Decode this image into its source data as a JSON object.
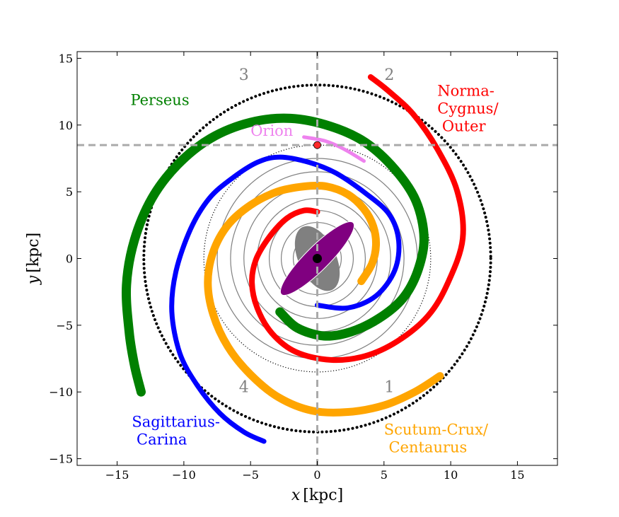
{
  "chart_data": {
    "type": "line",
    "xlim": [
      -18,
      18
    ],
    "ylim": [
      -15.5,
      15.5
    ],
    "xticks": [
      -15,
      -10,
      -5,
      0,
      5,
      10,
      15
    ],
    "yticks": [
      -15,
      -10,
      -5,
      0,
      5,
      10,
      15
    ],
    "xtick_labels": [
      "−15",
      "−10",
      "−5",
      "0",
      "5",
      "10",
      "15"
    ],
    "ytick_labels": [
      "−15",
      "−10",
      "−5",
      "0",
      "5",
      "10",
      "15"
    ],
    "xlabel_var": "x",
    "xlabel_unit": "[kpc]",
    "ylabel_var": "y",
    "ylabel_unit": "[kpc]",
    "grid": false,
    "sun": {
      "x": 0,
      "y": 8.5,
      "color": "#ff2a2a"
    },
    "galactic_center": {
      "x": 0,
      "y": 0
    },
    "reference_lines": {
      "x": 0,
      "y": 8.5,
      "color": "#aaaaaa"
    },
    "bulge": {
      "center": [
        0,
        0
      ],
      "semi_major": 2.6,
      "semi_minor": 1.4,
      "angle_deg": 115,
      "color": "#808080"
    },
    "bar": {
      "center": [
        0,
        0
      ],
      "semi_major": 3.8,
      "semi_minor": 0.9,
      "angle_deg": 45,
      "color": "#800080"
    },
    "circles": {
      "radii": [
        1,
        1.8,
        2.7,
        3.6,
        4.5,
        5.5,
        6.5,
        7.5
      ],
      "color": "#808080",
      "solar_circle_radius": 8.5,
      "outer_circle_radius": 13
    },
    "quadrants": [
      {
        "label": "1",
        "x": 5.4,
        "y": -9.7
      },
      {
        "label": "2",
        "x": 5.4,
        "y": 13.7
      },
      {
        "label": "3",
        "x": -5.5,
        "y": 13.7
      },
      {
        "label": "4",
        "x": -5.5,
        "y": -9.7
      }
    ],
    "series": [
      {
        "name": "Norma-Cygnus/ Outer",
        "label_lines": [
          "Norma-",
          "Cygnus/",
          " Outer"
        ],
        "label_pos": [
          9.0,
          12.2
        ],
        "color": "#ff0000",
        "width": 8,
        "points": [
          [
            0,
            3.5
          ],
          [
            -1,
            3.6
          ],
          [
            -2.3,
            3
          ],
          [
            -3.6,
            1.6
          ],
          [
            -4.6,
            -0.1
          ],
          [
            -4.9,
            -1.8
          ],
          [
            -4.5,
            -3.7
          ],
          [
            -3.4,
            -5.6
          ],
          [
            -1.6,
            -7
          ],
          [
            1,
            -7.6
          ],
          [
            3.6,
            -7.3
          ],
          [
            6,
            -6.2
          ],
          [
            8.3,
            -4.3
          ],
          [
            9.8,
            -1.8
          ],
          [
            10.9,
            1.5
          ],
          [
            10.5,
            5
          ],
          [
            9,
            8.2
          ],
          [
            7.2,
            10.8
          ],
          [
            5.4,
            12.5
          ],
          [
            4,
            13.6
          ]
        ]
      },
      {
        "name": "Scutum-Crux/ Centaurus",
        "label_lines": [
          "Scutum-Crux/",
          " Centaurus"
        ],
        "label_pos": [
          5.0,
          -13.2
        ],
        "color": "#ffa500",
        "width": 11,
        "points": [
          [
            3.3,
            -1.7
          ],
          [
            4.1,
            -0.4
          ],
          [
            4.4,
            1
          ],
          [
            4.2,
            2.4
          ],
          [
            3.5,
            3.7
          ],
          [
            2.3,
            4.8
          ],
          [
            0.7,
            5.4
          ],
          [
            -1,
            5.4
          ],
          [
            -3,
            5
          ],
          [
            -5,
            4
          ],
          [
            -6.7,
            2.5
          ],
          [
            -7.8,
            0.5
          ],
          [
            -8.2,
            -1.8
          ],
          [
            -7.8,
            -4.2
          ],
          [
            -6.7,
            -6.6
          ],
          [
            -5,
            -8.7
          ],
          [
            -2.9,
            -10.4
          ],
          [
            -0.4,
            -11.4
          ],
          [
            2.3,
            -11.5
          ],
          [
            5,
            -11
          ],
          [
            7.3,
            -10
          ],
          [
            9.2,
            -8.8
          ]
        ]
      },
      {
        "name": "Sagittarius-Carina",
        "label_lines": [
          "Sagittarius-",
          " Carina"
        ],
        "label_pos": [
          -13.9,
          -12.6
        ],
        "color": "#0000ff",
        "width": 7,
        "points": [
          [
            0,
            -3.5
          ],
          [
            2.3,
            -3.7
          ],
          [
            4.4,
            -2.8
          ],
          [
            5.8,
            -0.9
          ],
          [
            6.1,
            1.3
          ],
          [
            5.4,
            3.3
          ],
          [
            3.6,
            4.9
          ],
          [
            1.4,
            6.4
          ],
          [
            -0.6,
            7.2
          ],
          [
            -2.8,
            7.6
          ],
          [
            -4.5,
            7.2
          ],
          [
            -6.4,
            6
          ],
          [
            -8.1,
            4.5
          ],
          [
            -9.5,
            2.2
          ],
          [
            -10.6,
            -1
          ],
          [
            -10.9,
            -4
          ],
          [
            -10.3,
            -7.1
          ],
          [
            -9,
            -9.5
          ],
          [
            -7.3,
            -11.6
          ],
          [
            -5.5,
            -13
          ],
          [
            -4,
            -13.7
          ]
        ]
      },
      {
        "name": "Perseus",
        "label_lines": [
          "Perseus"
        ],
        "label_pos": [
          -14.0,
          11.5
        ],
        "color": "#008000",
        "width": 13,
        "points": [
          [
            -2.8,
            -4
          ],
          [
            -1.5,
            -5.2
          ],
          [
            0.5,
            -5.8
          ],
          [
            2.5,
            -5.5
          ],
          [
            4.6,
            -4.5
          ],
          [
            6.4,
            -3
          ],
          [
            7.5,
            -1
          ],
          [
            8,
            1.5
          ],
          [
            7.4,
            4.3
          ],
          [
            5.8,
            6.7
          ],
          [
            3.6,
            8.7
          ],
          [
            1,
            9.9
          ],
          [
            -2,
            10.5
          ],
          [
            -5,
            10.2
          ],
          [
            -8,
            9
          ],
          [
            -10.5,
            7
          ],
          [
            -12.4,
            4.5
          ],
          [
            -13.7,
            1.4
          ],
          [
            -14.3,
            -2
          ],
          [
            -14.1,
            -5.5
          ],
          [
            -13.7,
            -8
          ],
          [
            -13.2,
            -10
          ]
        ]
      },
      {
        "name": "Orion",
        "label_lines": [
          "Orion"
        ],
        "label_pos": [
          -5.0,
          9.2
        ],
        "color": "#ee82ee",
        "width": 5,
        "points": [
          [
            -1,
            9.1
          ],
          [
            0.6,
            8.8
          ],
          [
            2,
            8.2
          ],
          [
            3.5,
            7.3
          ]
        ]
      }
    ]
  }
}
